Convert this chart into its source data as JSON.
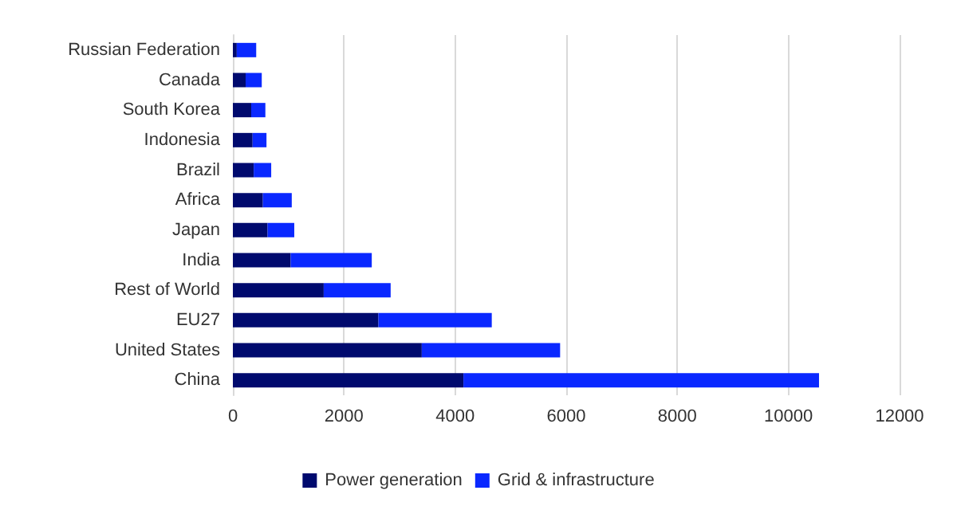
{
  "chart_data": {
    "type": "bar",
    "orientation": "horizontal",
    "stacked": true,
    "categories": [
      "Russian Federation",
      "Canada",
      "South Korea",
      "Indonesia",
      "Brazil",
      "Africa",
      "Japan",
      "India",
      "Rest of World",
      "EU27",
      "United States",
      "China"
    ],
    "series": [
      {
        "name": "Power generation",
        "color": "#000a6e",
        "values": [
          70,
          230,
          330,
          355,
          375,
          540,
          625,
          1040,
          1635,
          2620,
          3400,
          4150
        ]
      },
      {
        "name": "Grid & infrastructure",
        "color": "#0a28ff",
        "values": [
          350,
          290,
          255,
          250,
          315,
          520,
          480,
          1460,
          1205,
          2040,
          2490,
          6400
        ]
      }
    ],
    "xlim": [
      0,
      12000
    ],
    "xticks": [
      0,
      2000,
      4000,
      6000,
      8000,
      10000,
      12000
    ],
    "grid": "x",
    "legend": "bottom"
  }
}
